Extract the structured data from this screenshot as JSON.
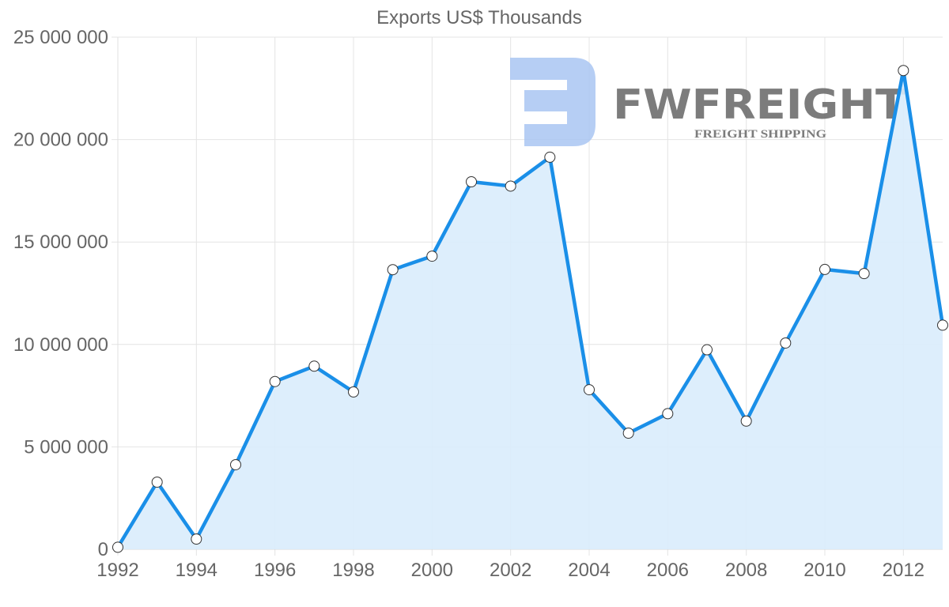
{
  "chart_data": {
    "type": "area",
    "title": "Exports US$ Thousands",
    "xlabel": "",
    "ylabel": "",
    "x": [
      1992,
      1993,
      1994,
      1995,
      1996,
      1997,
      1998,
      1999,
      2000,
      2001,
      2002,
      2003,
      2004,
      2005,
      2006,
      2007,
      2008,
      2009,
      2010,
      2011,
      2012,
      2013
    ],
    "series": [
      {
        "name": "Exports US$ Thousands",
        "values": [
          100000,
          3280000,
          500000,
          4130000,
          8190000,
          8940000,
          7680000,
          13650000,
          14310000,
          17940000,
          17730000,
          19140000,
          7790000,
          5670000,
          6620000,
          9740000,
          6260000,
          10070000,
          13660000,
          13460000,
          23370000,
          10940000
        ],
        "line_color": "#1a8fe8",
        "fill_color": "#d9ecfc"
      }
    ],
    "ylim": [
      0,
      25000000
    ],
    "y_ticks": [
      0,
      5000000,
      10000000,
      15000000,
      20000000,
      25000000
    ],
    "y_tick_labels": [
      "0",
      "5 000 000",
      "10 000 000",
      "15 000 000",
      "20 000 000",
      "25 000 000"
    ],
    "x_tick_labels": [
      "1992",
      "1994",
      "1996",
      "1998",
      "2000",
      "2002",
      "2004",
      "2006",
      "2008",
      "2010",
      "2012"
    ],
    "grid": true,
    "legend": "none"
  },
  "watermark": {
    "brand": "FWFREIGHT",
    "tagline": "FREIGHT SHIPPING",
    "color": "#a9c6f2"
  }
}
